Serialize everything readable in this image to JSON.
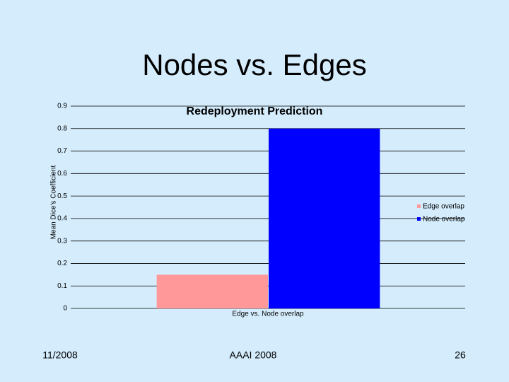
{
  "slide": {
    "title": "Nodes vs. Edges",
    "footer_left": "11/2008",
    "footer_center": "AAAI 2008",
    "footer_right": "26"
  },
  "chart_data": {
    "type": "bar",
    "title": "Redeployment Prediction",
    "y_label": "Mean Dice's Coefficient",
    "categories": [
      "Edge vs. Node overlap"
    ],
    "series": [
      {
        "name": "Edge overlap",
        "color": "#ff9999",
        "values": [
          0.15
        ]
      },
      {
        "name": "Node overlap",
        "color": "#0000ff",
        "values": [
          0.8
        ]
      }
    ],
    "ylim": [
      0,
      0.9
    ],
    "yticks": [
      0,
      0.1,
      0.2,
      0.3,
      0.4,
      0.5,
      0.6,
      0.7,
      0.8,
      0.9
    ],
    "grid": true,
    "legend": "right"
  }
}
